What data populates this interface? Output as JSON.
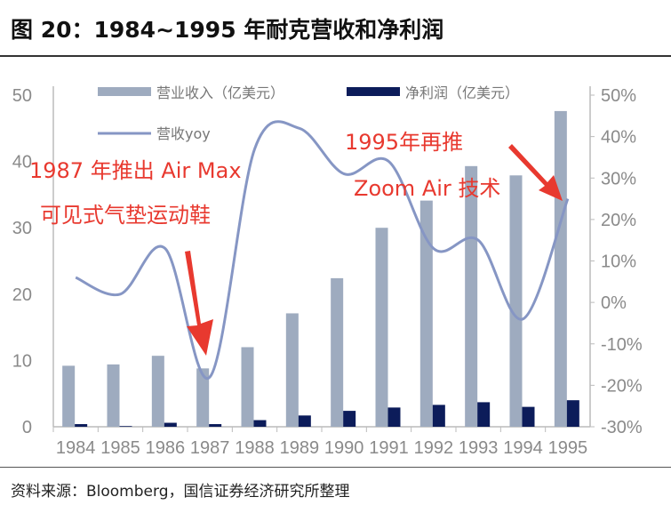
{
  "title": "图 20：1984~1995 年耐克营收和净利润",
  "source": "资料来源：Bloomberg，国信证券经济研究所整理",
  "colors": {
    "revenue": "#9eabbf",
    "profit": "#0c1c5a",
    "yoy": "#8696c4",
    "annotation": "#e8392f"
  },
  "chart_data": {
    "type": "bar",
    "categories": [
      "1984",
      "1985",
      "1986",
      "1987",
      "1988",
      "1989",
      "1990",
      "1991",
      "1992",
      "1993",
      "1994",
      "1995"
    ],
    "series": [
      {
        "name": "营业收入（亿美元）",
        "type": "bar",
        "axis": "left",
        "values": [
          9.2,
          9.4,
          10.7,
          8.8,
          12.0,
          17.1,
          22.4,
          30.0,
          34.1,
          39.3,
          37.9,
          47.6
        ]
      },
      {
        "name": "净利润（亿美元）",
        "type": "bar",
        "axis": "left",
        "values": [
          0.4,
          0.1,
          0.6,
          0.4,
          1.0,
          1.7,
          2.4,
          2.9,
          3.3,
          3.7,
          3.0,
          4.0
        ]
      },
      {
        "name": "营收yoy",
        "type": "line",
        "axis": "right",
        "values": [
          6,
          2,
          13,
          -18,
          37,
          42,
          31,
          34,
          13,
          15,
          -4,
          25
        ]
      }
    ],
    "left_axis": {
      "range": [
        0,
        50
      ],
      "ticks": [
        "0",
        "10",
        "20",
        "30",
        "40",
        "50"
      ]
    },
    "right_axis": {
      "range": [
        -30,
        50
      ],
      "ticks": [
        "-30%",
        "-20%",
        "-10%",
        "0%",
        "10%",
        "20%",
        "30%",
        "40%",
        "50%"
      ]
    },
    "legend_placement": "top",
    "annotations": [
      {
        "lines": [
          "1987 年推出 Air Max",
          "可见式气垫运动鞋"
        ],
        "target": "1987"
      },
      {
        "lines": [
          "1995年再推",
          "Zoom Air 技术"
        ],
        "target": "1995"
      }
    ]
  }
}
